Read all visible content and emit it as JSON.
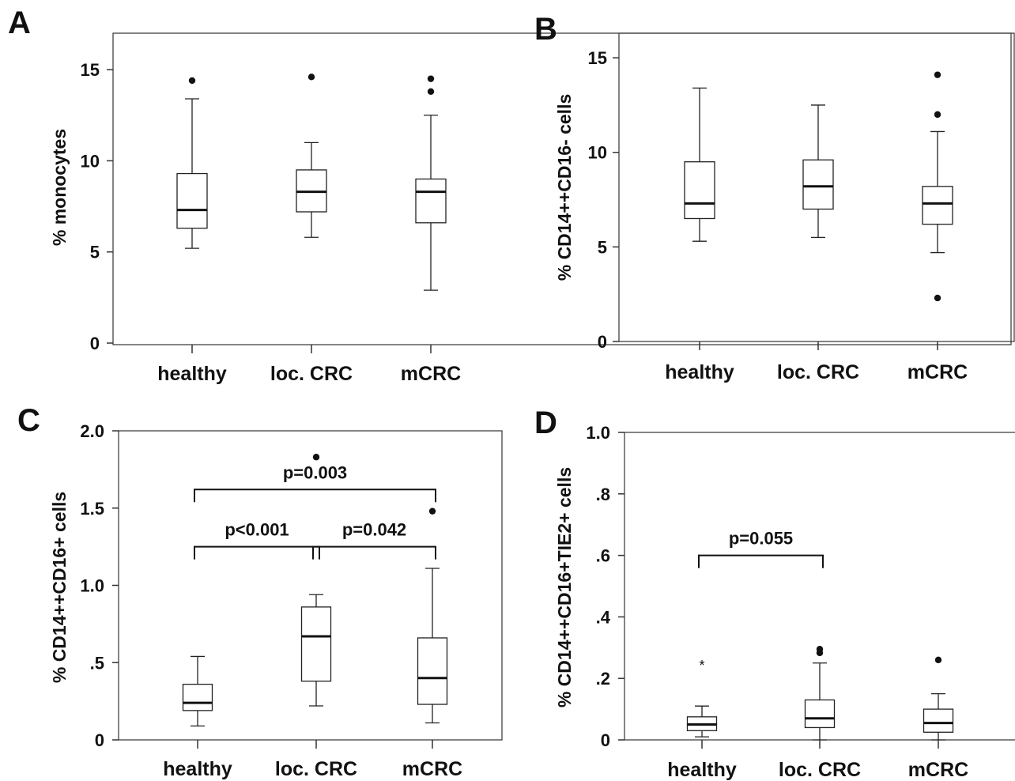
{
  "chart_data": [
    {
      "panel": "A",
      "type": "box",
      "ylabel": "% monocytes",
      "categories": [
        "healthy",
        "loc. CRC",
        "mCRC"
      ],
      "ylim": [
        0,
        17
      ],
      "yticks": [
        {
          "v": 0,
          "label": "0"
        },
        {
          "v": 5,
          "label": "5"
        },
        {
          "v": 10,
          "label": "10"
        },
        {
          "v": 15,
          "label": "15"
        }
      ],
      "boxes": [
        {
          "min": 5.2,
          "q1": 6.3,
          "median": 7.3,
          "q3": 9.3,
          "max": 13.4,
          "outliers": [
            {
              "v": 14.4,
              "m": "dot"
            }
          ]
        },
        {
          "min": 5.8,
          "q1": 7.2,
          "median": 8.3,
          "q3": 9.5,
          "max": 11.0,
          "outliers": [
            {
              "v": 14.6,
              "m": "dot"
            }
          ]
        },
        {
          "min": 2.9,
          "q1": 6.6,
          "median": 8.3,
          "q3": 9.0,
          "max": 12.5,
          "outliers": [
            {
              "v": 13.8,
              "m": "dot"
            },
            {
              "v": 14.5,
              "m": "dot"
            }
          ]
        }
      ],
      "brackets": []
    },
    {
      "panel": "B",
      "type": "box",
      "ylabel": "% CD14++CD16- cells",
      "categories": [
        "healthy",
        "loc. CRC",
        "mCRC"
      ],
      "ylim": [
        0,
        16.3
      ],
      "yticks": [
        {
          "v": 0,
          "label": "0"
        },
        {
          "v": 5,
          "label": "5"
        },
        {
          "v": 10,
          "label": "10"
        },
        {
          "v": 15,
          "label": "15"
        }
      ],
      "boxes": [
        {
          "min": 5.3,
          "q1": 6.5,
          "median": 7.3,
          "q3": 9.5,
          "max": 13.4,
          "outliers": []
        },
        {
          "min": 5.5,
          "q1": 7.0,
          "median": 8.2,
          "q3": 9.6,
          "max": 12.5,
          "outliers": []
        },
        {
          "min": 4.7,
          "q1": 6.2,
          "median": 7.3,
          "q3": 8.2,
          "max": 11.1,
          "outliers": [
            {
              "v": 2.3,
              "m": "dot"
            },
            {
              "v": 12.0,
              "m": "dot"
            },
            {
              "v": 14.1,
              "m": "dot"
            }
          ]
        }
      ],
      "brackets": []
    },
    {
      "panel": "C",
      "type": "box",
      "ylabel": "% CD14++CD16+ cells",
      "categories": [
        "healthy",
        "loc. CRC",
        "mCRC"
      ],
      "ylim": [
        0,
        2.0
      ],
      "yticks": [
        {
          "v": 0,
          "label": "0"
        },
        {
          "v": 0.5,
          "label": ".5"
        },
        {
          "v": 1.0,
          "label": "1.0"
        },
        {
          "v": 1.5,
          "label": "1.5"
        },
        {
          "v": 2.0,
          "label": "2.0"
        }
      ],
      "boxes": [
        {
          "min": 0.09,
          "q1": 0.19,
          "median": 0.24,
          "q3": 0.36,
          "max": 0.54,
          "outliers": []
        },
        {
          "min": 0.22,
          "q1": 0.38,
          "median": 0.67,
          "q3": 0.86,
          "max": 0.94,
          "outliers": [
            {
              "v": 1.83,
              "m": "dot"
            }
          ]
        },
        {
          "min": 0.11,
          "q1": 0.23,
          "median": 0.4,
          "q3": 0.66,
          "max": 1.11,
          "outliers": [
            {
              "v": 1.48,
              "m": "dot"
            }
          ]
        }
      ],
      "brackets": [
        {
          "from": 0,
          "to": 1,
          "y": 1.25,
          "label": "p<0.001"
        },
        {
          "from": 1,
          "to": 2,
          "y": 1.25,
          "label": "p=0.042"
        },
        {
          "from": 0,
          "to": 2,
          "y": 1.62,
          "label": "p=0.003"
        }
      ]
    },
    {
      "panel": "D",
      "type": "box",
      "ylabel": "% CD14++CD16+TIE2+ cells",
      "categories": [
        "healthy",
        "loc. CRC",
        "mCRC"
      ],
      "ylim": [
        0,
        1.0
      ],
      "yticks": [
        {
          "v": 0,
          "label": "0"
        },
        {
          "v": 0.2,
          "label": ".2"
        },
        {
          "v": 0.4,
          "label": ".4"
        },
        {
          "v": 0.6,
          "label": ".6"
        },
        {
          "v": 0.8,
          "label": ".8"
        },
        {
          "v": 1.0,
          "label": "1.0"
        }
      ],
      "boxes": [
        {
          "min": 0.01,
          "q1": 0.03,
          "median": 0.05,
          "q3": 0.075,
          "max": 0.11,
          "outliers": [
            {
              "v": 0.25,
              "m": "star"
            }
          ]
        },
        {
          "min": 0.0,
          "q1": 0.04,
          "median": 0.07,
          "q3": 0.13,
          "max": 0.25,
          "outliers": [
            {
              "v": 0.283,
              "m": "dot"
            },
            {
              "v": 0.295,
              "m": "dot"
            }
          ]
        },
        {
          "min": 0.0,
          "q1": 0.025,
          "median": 0.055,
          "q3": 0.1,
          "max": 0.15,
          "outliers": [
            {
              "v": 0.26,
              "m": "dot"
            }
          ]
        }
      ],
      "brackets": [
        {
          "from": 0,
          "to": 1,
          "y": 0.6,
          "label": "p=0.055"
        }
      ]
    }
  ]
}
